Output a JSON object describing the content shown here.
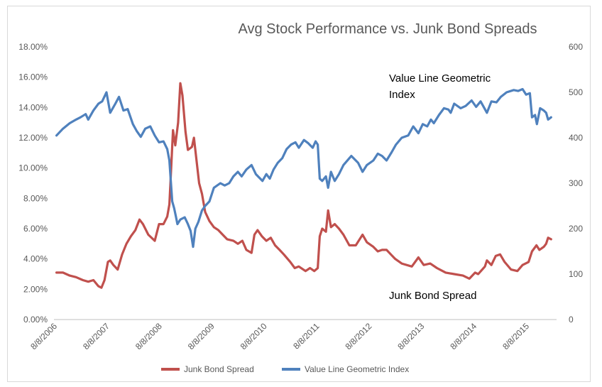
{
  "chart_data": {
    "type": "line",
    "title": "Avg Stock Performance vs. Junk Bond Spreads",
    "x_tick_labels": [
      "8/8/2006",
      "8/8/2007",
      "8/8/2008",
      "8/8/2009",
      "8/8/2010",
      "8/8/2011",
      "8/8/2012",
      "8/8/2013",
      "8/8/2014",
      "8/8/2015"
    ],
    "y_left": {
      "tick_labels": [
        "0.00%",
        "2.00%",
        "4.00%",
        "6.00%",
        "8.00%",
        "10.00%",
        "12.00%",
        "14.00%",
        "16.00%",
        "18.00%"
      ],
      "ylim": [
        0,
        18
      ]
    },
    "y_right": {
      "tick_labels": [
        "0",
        "100",
        "200",
        "300",
        "400",
        "500",
        "600"
      ],
      "ylim": [
        0,
        600
      ]
    },
    "grid": false,
    "legend_position": "bottom",
    "series": [
      {
        "name": "Junk Bond Spread",
        "axis": "left",
        "color": "#c0504d",
        "points": [
          [
            "2006-08-01",
            3.1
          ],
          [
            "2006-09-15",
            3.1
          ],
          [
            "2006-11-01",
            2.9
          ],
          [
            "2006-12-15",
            2.8
          ],
          [
            "2007-02-01",
            2.6
          ],
          [
            "2007-03-10",
            2.5
          ],
          [
            "2007-04-15",
            2.6
          ],
          [
            "2007-05-20",
            2.2
          ],
          [
            "2007-06-10",
            2.1
          ],
          [
            "2007-07-01",
            2.6
          ],
          [
            "2007-07-25",
            3.8
          ],
          [
            "2007-08-10",
            3.9
          ],
          [
            "2007-09-01",
            3.6
          ],
          [
            "2007-10-01",
            3.3
          ],
          [
            "2007-11-01",
            4.3
          ],
          [
            "2007-12-01",
            5.0
          ],
          [
            "2008-01-01",
            5.5
          ],
          [
            "2008-02-01",
            5.9
          ],
          [
            "2008-03-01",
            6.6
          ],
          [
            "2008-03-25",
            6.3
          ],
          [
            "2008-05-01",
            5.6
          ],
          [
            "2008-06-15",
            5.2
          ],
          [
            "2008-07-15",
            6.3
          ],
          [
            "2008-08-15",
            6.3
          ],
          [
            "2008-09-10",
            6.8
          ],
          [
            "2008-09-25",
            7.6
          ],
          [
            "2008-10-05",
            9.5
          ],
          [
            "2008-10-20",
            12.5
          ],
          [
            "2008-11-05",
            11.5
          ],
          [
            "2008-11-25",
            13.0
          ],
          [
            "2008-12-10",
            15.6
          ],
          [
            "2008-12-25",
            14.8
          ],
          [
            "2009-01-15",
            12.4
          ],
          [
            "2009-02-01",
            11.2
          ],
          [
            "2009-03-01",
            11.4
          ],
          [
            "2009-03-15",
            12.0
          ],
          [
            "2009-04-01",
            10.6
          ],
          [
            "2009-04-20",
            9.0
          ],
          [
            "2009-05-10",
            8.3
          ],
          [
            "2009-06-01",
            7.1
          ],
          [
            "2009-07-01",
            6.5
          ],
          [
            "2009-08-01",
            6.1
          ],
          [
            "2009-09-01",
            5.9
          ],
          [
            "2009-10-01",
            5.6
          ],
          [
            "2009-11-01",
            5.3
          ],
          [
            "2009-12-15",
            5.2
          ],
          [
            "2010-01-15",
            5.0
          ],
          [
            "2010-02-15",
            5.2
          ],
          [
            "2010-03-15",
            4.6
          ],
          [
            "2010-04-20",
            4.4
          ],
          [
            "2010-05-10",
            5.6
          ],
          [
            "2010-06-01",
            5.9
          ],
          [
            "2010-07-01",
            5.5
          ],
          [
            "2010-08-01",
            5.2
          ],
          [
            "2010-09-01",
            5.4
          ],
          [
            "2010-10-01",
            4.9
          ],
          [
            "2010-11-01",
            4.6
          ],
          [
            "2010-12-01",
            4.3
          ],
          [
            "2011-01-15",
            3.8
          ],
          [
            "2011-02-15",
            3.4
          ],
          [
            "2011-03-15",
            3.5
          ],
          [
            "2011-05-01",
            3.2
          ],
          [
            "2011-06-01",
            3.4
          ],
          [
            "2011-07-01",
            3.2
          ],
          [
            "2011-07-25",
            3.4
          ],
          [
            "2011-08-08",
            5.5
          ],
          [
            "2011-08-25",
            6.0
          ],
          [
            "2011-09-20",
            5.8
          ],
          [
            "2011-10-05",
            7.2
          ],
          [
            "2011-10-25",
            6.1
          ],
          [
            "2011-11-20",
            6.3
          ],
          [
            "2011-12-20",
            6.0
          ],
          [
            "2012-01-20",
            5.6
          ],
          [
            "2012-03-01",
            4.9
          ],
          [
            "2012-04-15",
            4.9
          ],
          [
            "2012-06-01",
            5.6
          ],
          [
            "2012-07-01",
            5.1
          ],
          [
            "2012-08-15",
            4.8
          ],
          [
            "2012-09-15",
            4.5
          ],
          [
            "2012-10-15",
            4.6
          ],
          [
            "2012-11-15",
            4.6
          ],
          [
            "2012-12-15",
            4.3
          ],
          [
            "2013-01-15",
            4.0
          ],
          [
            "2013-03-01",
            3.7
          ],
          [
            "2013-05-10",
            3.5
          ],
          [
            "2013-06-25",
            4.1
          ],
          [
            "2013-08-01",
            3.6
          ],
          [
            "2013-09-15",
            3.7
          ],
          [
            "2013-11-01",
            3.4
          ],
          [
            "2014-01-01",
            3.1
          ],
          [
            "2014-03-01",
            3.0
          ],
          [
            "2014-05-01",
            2.9
          ],
          [
            "2014-06-15",
            2.7
          ],
          [
            "2014-07-25",
            3.1
          ],
          [
            "2014-08-15",
            3.0
          ],
          [
            "2014-10-01",
            3.5
          ],
          [
            "2014-10-15",
            3.9
          ],
          [
            "2014-11-15",
            3.6
          ],
          [
            "2014-12-15",
            4.2
          ],
          [
            "2015-01-15",
            4.3
          ],
          [
            "2015-02-15",
            3.8
          ],
          [
            "2015-04-01",
            3.3
          ],
          [
            "2015-05-15",
            3.2
          ],
          [
            "2015-06-20",
            3.6
          ],
          [
            "2015-08-01",
            3.8
          ],
          [
            "2015-08-25",
            4.5
          ],
          [
            "2015-09-25",
            4.9
          ],
          [
            "2015-10-15",
            4.6
          ],
          [
            "2015-11-15",
            4.8
          ],
          [
            "2015-12-01",
            5.0
          ],
          [
            "2015-12-15",
            5.4
          ],
          [
            "2016-01-05",
            5.3
          ]
        ]
      },
      {
        "name": "Value Line Geometric Index",
        "axis": "right",
        "color": "#4f81bd",
        "points": [
          [
            "2006-08-01",
            405
          ],
          [
            "2006-09-15",
            420
          ],
          [
            "2006-11-01",
            432
          ],
          [
            "2006-12-15",
            440
          ],
          [
            "2007-01-15",
            445
          ],
          [
            "2007-02-20",
            452
          ],
          [
            "2007-03-10",
            440
          ],
          [
            "2007-04-15",
            460
          ],
          [
            "2007-05-20",
            475
          ],
          [
            "2007-06-15",
            480
          ],
          [
            "2007-07-15",
            500
          ],
          [
            "2007-08-10",
            455
          ],
          [
            "2007-09-15",
            475
          ],
          [
            "2007-10-10",
            490
          ],
          [
            "2007-11-10",
            460
          ],
          [
            "2007-12-10",
            463
          ],
          [
            "2008-01-15",
            430
          ],
          [
            "2008-02-10",
            415
          ],
          [
            "2008-03-10",
            402
          ],
          [
            "2008-04-10",
            420
          ],
          [
            "2008-05-15",
            425
          ],
          [
            "2008-06-15",
            405
          ],
          [
            "2008-07-15",
            390
          ],
          [
            "2008-08-15",
            392
          ],
          [
            "2008-09-10",
            375
          ],
          [
            "2008-09-25",
            350
          ],
          [
            "2008-10-05",
            305
          ],
          [
            "2008-10-15",
            260
          ],
          [
            "2008-10-28",
            245
          ],
          [
            "2008-11-10",
            226
          ],
          [
            "2008-11-20",
            210
          ],
          [
            "2008-12-10",
            220
          ],
          [
            "2009-01-10",
            225
          ],
          [
            "2009-02-01",
            210
          ],
          [
            "2009-02-20",
            195
          ],
          [
            "2009-03-09",
            160
          ],
          [
            "2009-03-25",
            200
          ],
          [
            "2009-04-15",
            215
          ],
          [
            "2009-05-10",
            240
          ],
          [
            "2009-06-01",
            250
          ],
          [
            "2009-07-01",
            260
          ],
          [
            "2009-08-01",
            290
          ],
          [
            "2009-09-15",
            300
          ],
          [
            "2009-10-15",
            295
          ],
          [
            "2009-11-15",
            300
          ],
          [
            "2009-12-15",
            315
          ],
          [
            "2010-01-15",
            325
          ],
          [
            "2010-02-10",
            315
          ],
          [
            "2010-03-15",
            330
          ],
          [
            "2010-04-20",
            340
          ],
          [
            "2010-05-20",
            320
          ],
          [
            "2010-07-05",
            305
          ],
          [
            "2010-08-01",
            320
          ],
          [
            "2010-08-25",
            310
          ],
          [
            "2010-09-20",
            330
          ],
          [
            "2010-10-20",
            345
          ],
          [
            "2010-11-20",
            355
          ],
          [
            "2010-12-20",
            375
          ],
          [
            "2011-01-20",
            385
          ],
          [
            "2011-02-20",
            390
          ],
          [
            "2011-03-15",
            378
          ],
          [
            "2011-04-20",
            395
          ],
          [
            "2011-05-20",
            388
          ],
          [
            "2011-06-20",
            378
          ],
          [
            "2011-07-10",
            392
          ],
          [
            "2011-07-25",
            385
          ],
          [
            "2011-08-08",
            310
          ],
          [
            "2011-08-25",
            305
          ],
          [
            "2011-09-20",
            315
          ],
          [
            "2011-10-05",
            290
          ],
          [
            "2011-10-25",
            325
          ],
          [
            "2011-11-20",
            305
          ],
          [
            "2011-12-20",
            320
          ],
          [
            "2012-01-20",
            340
          ],
          [
            "2012-03-15",
            360
          ],
          [
            "2012-05-01",
            345
          ],
          [
            "2012-06-01",
            325
          ],
          [
            "2012-07-01",
            340
          ],
          [
            "2012-08-15",
            350
          ],
          [
            "2012-09-15",
            365
          ],
          [
            "2012-10-15",
            360
          ],
          [
            "2012-11-15",
            350
          ],
          [
            "2012-12-20",
            368
          ],
          [
            "2013-01-20",
            385
          ],
          [
            "2013-03-01",
            400
          ],
          [
            "2013-04-15",
            405
          ],
          [
            "2013-05-20",
            425
          ],
          [
            "2013-06-25",
            410
          ],
          [
            "2013-07-25",
            430
          ],
          [
            "2013-08-25",
            425
          ],
          [
            "2013-09-20",
            440
          ],
          [
            "2013-10-10",
            432
          ],
          [
            "2013-11-15",
            450
          ],
          [
            "2013-12-20",
            465
          ],
          [
            "2014-01-20",
            462
          ],
          [
            "2014-02-05",
            455
          ],
          [
            "2014-03-01",
            475
          ],
          [
            "2014-04-15",
            465
          ],
          [
            "2014-05-20",
            470
          ],
          [
            "2014-06-30",
            482
          ],
          [
            "2014-08-01",
            468
          ],
          [
            "2014-09-01",
            480
          ],
          [
            "2014-10-15",
            455
          ],
          [
            "2014-11-15",
            480
          ],
          [
            "2014-12-20",
            478
          ],
          [
            "2015-01-20",
            490
          ],
          [
            "2015-03-01",
            500
          ],
          [
            "2015-04-20",
            505
          ],
          [
            "2015-05-20",
            503
          ],
          [
            "2015-06-20",
            507
          ],
          [
            "2015-07-15",
            495
          ],
          [
            "2015-08-10",
            498
          ],
          [
            "2015-08-25",
            445
          ],
          [
            "2015-09-15",
            450
          ],
          [
            "2015-09-28",
            430
          ],
          [
            "2015-10-20",
            465
          ],
          [
            "2015-11-15",
            460
          ],
          [
            "2015-12-01",
            455
          ],
          [
            "2015-12-15",
            440
          ],
          [
            "2016-01-05",
            445
          ]
        ]
      }
    ],
    "annotations": [
      {
        "text_lines": [
          "Value Line Geometric",
          "Index"
        ]
      },
      {
        "text_lines": [
          "Junk Bond Spread"
        ]
      }
    ]
  }
}
